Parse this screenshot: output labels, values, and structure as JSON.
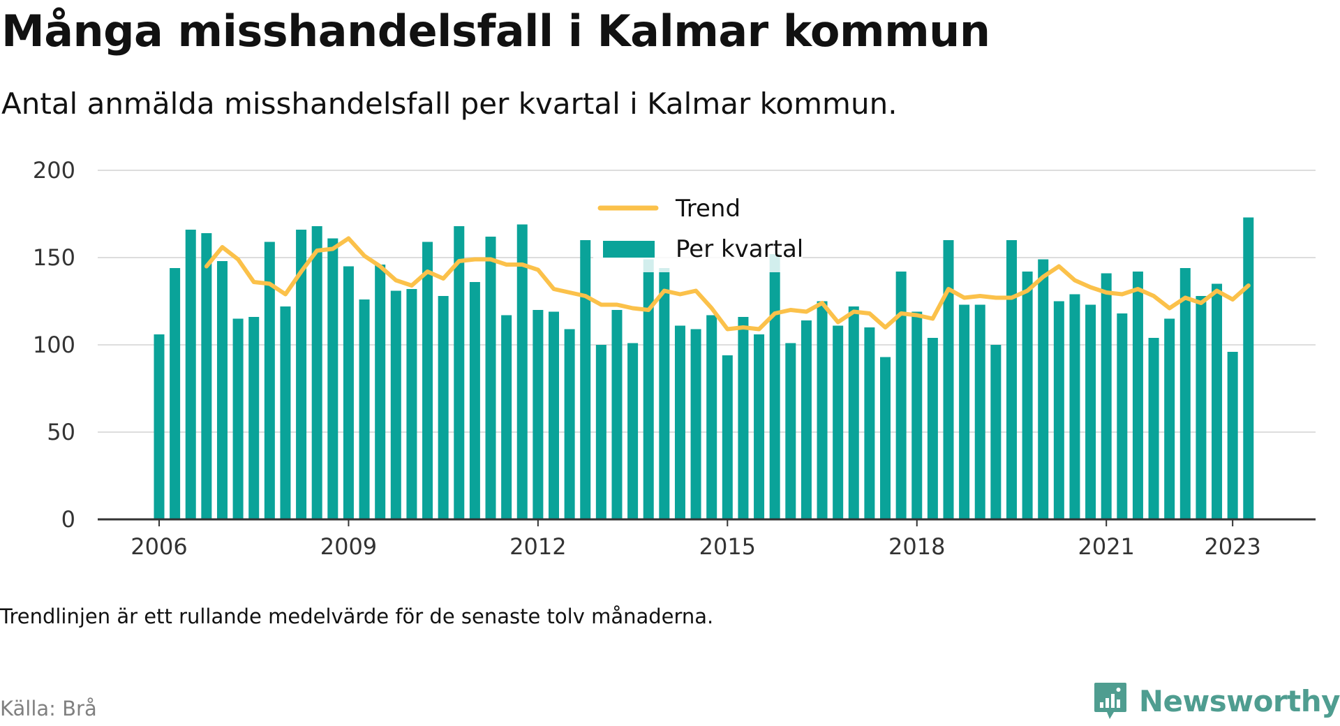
{
  "header": {
    "title": "Många misshandelsfall i Kalmar kommun",
    "subtitle": "Antal anmälda misshandelsfall per kvartal i Kalmar kommun."
  },
  "footer": {
    "note": "Trendlinjen är ett rullande medelvärde för de senaste tolv månaderna.",
    "source": "Källa: Brå",
    "brand": "Newsworthy"
  },
  "colors": {
    "bars": "#0aa399",
    "trend": "#fbc14a",
    "grid": "#dddddd",
    "axis": "#333333",
    "brand": "#4f9d90"
  },
  "chart_data": {
    "type": "bar",
    "title": "",
    "xlabel": "",
    "ylabel": "",
    "ylim": [
      0,
      200
    ],
    "y_ticks": [
      "0",
      "50",
      "100",
      "150",
      "200"
    ],
    "x_ticks": [
      "2006",
      "2009",
      "2012",
      "2015",
      "2018",
      "2021",
      "2023"
    ],
    "grid": true,
    "legend_position": "top-center",
    "categories": [
      "2006 K1",
      "2006 K2",
      "2006 K3",
      "2006 K4",
      "2007 K1",
      "2007 K2",
      "2007 K3",
      "2007 K4",
      "2008 K1",
      "2008 K2",
      "2008 K3",
      "2008 K4",
      "2009 K1",
      "2009 K2",
      "2009 K3",
      "2009 K4",
      "2010 K1",
      "2010 K2",
      "2010 K3",
      "2010 K4",
      "2011 K1",
      "2011 K2",
      "2011 K3",
      "2011 K4",
      "2012 K1",
      "2012 K2",
      "2012 K3",
      "2012 K4",
      "2013 K1",
      "2013 K2",
      "2013 K3",
      "2013 K4",
      "2014 K1",
      "2014 K2",
      "2014 K3",
      "2014 K4",
      "2015 K1",
      "2015 K2",
      "2015 K3",
      "2015 K4",
      "2016 K1",
      "2016 K2",
      "2016 K3",
      "2016 K4",
      "2017 K1",
      "2017 K2",
      "2017 K3",
      "2017 K4",
      "2018 K1",
      "2018 K2",
      "2018 K3",
      "2018 K4",
      "2019 K1",
      "2019 K2",
      "2019 K3",
      "2019 K4",
      "2020 K1",
      "2020 K2",
      "2020 K3",
      "2020 K4",
      "2021 K1",
      "2021 K2",
      "2021 K3",
      "2021 K4",
      "2022 K1",
      "2022 K2",
      "2022 K3",
      "2022 K4",
      "2023 K1",
      "2023 K2"
    ],
    "series": [
      {
        "name": "Per kvartal",
        "values": [
          106,
          144,
          166,
          164,
          148,
          115,
          116,
          159,
          122,
          166,
          168,
          161,
          145,
          126,
          146,
          131,
          132,
          159,
          128,
          168,
          136,
          162,
          117,
          169,
          120,
          119,
          109,
          160,
          100,
          120,
          101,
          149,
          144,
          111,
          109,
          117,
          94,
          116,
          106,
          152,
          101,
          114,
          125,
          111,
          122,
          110,
          93,
          142,
          119,
          104,
          160,
          123,
          123,
          100,
          160,
          142,
          149,
          125,
          129,
          123,
          141,
          118,
          142,
          104,
          115,
          144,
          128,
          135,
          96,
          173
        ]
      },
      {
        "name": "Trend",
        "values": [
          null,
          null,
          null,
          145,
          156,
          149,
          136,
          135,
          129,
          142,
          154,
          155,
          161,
          151,
          145,
          137,
          134,
          142,
          138,
          148,
          149,
          149,
          146,
          146,
          143,
          132,
          130,
          128,
          123,
          123,
          121,
          120,
          131,
          129,
          131,
          121,
          109,
          110,
          109,
          118,
          120,
          119,
          124,
          113,
          119,
          118,
          110,
          118,
          117,
          115,
          132,
          127,
          128,
          127,
          127,
          131,
          139,
          145,
          137,
          133,
          130,
          129,
          132,
          128,
          121,
          127,
          124,
          131,
          126,
          134
        ]
      }
    ]
  }
}
